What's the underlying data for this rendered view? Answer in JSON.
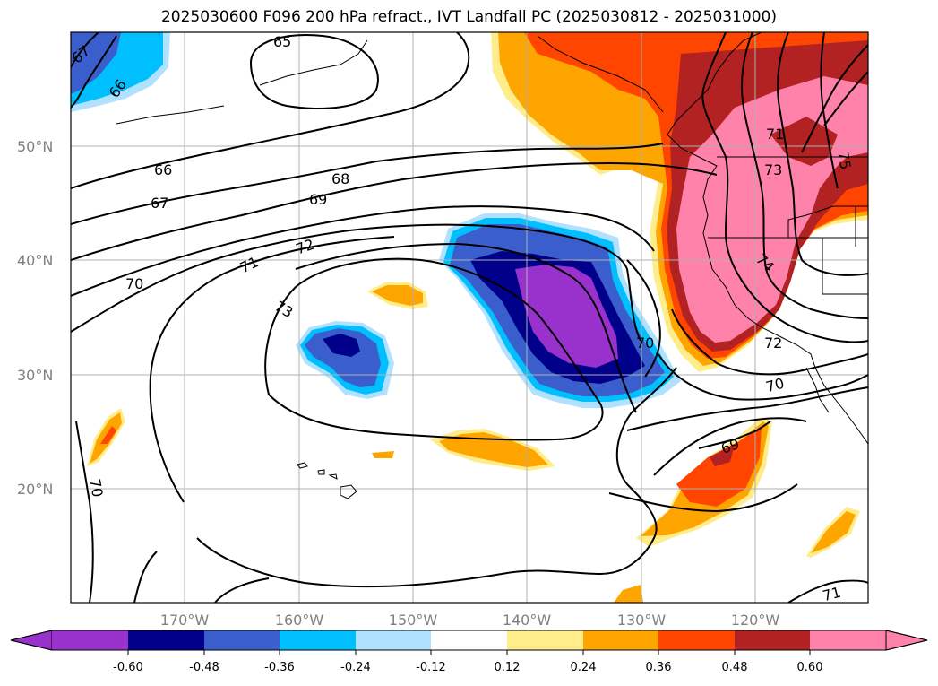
{
  "title": "2025030600 F096 200 hPa refract., IVT Landfall PC (2025030812 - 2025031000)",
  "axes": {
    "lat_labels": [
      "50°N",
      "40°N",
      "30°N",
      "20°N"
    ],
    "lon_labels": [
      "170°W",
      "160°W",
      "150°W",
      "140°W",
      "130°W",
      "120°W"
    ]
  },
  "contour_labels": [
    "67",
    "66",
    "65",
    "66",
    "67",
    "68",
    "69",
    "70",
    "71",
    "72",
    "73",
    "71",
    "73",
    "75",
    "74",
    "72",
    "70",
    "70",
    "69",
    "70",
    "71"
  ],
  "colorbar": {
    "ticks": [
      "-0.60",
      "-0.48",
      "-0.36",
      "-0.24",
      "-0.12",
      "0.12",
      "0.24",
      "0.36",
      "0.48",
      "0.60"
    ],
    "colors": [
      "#9932cc",
      "#00008b",
      "#3a5fcd",
      "#00bfff",
      "#b0e2ff",
      "#ffffff",
      "#ffec8b",
      "#ffa500",
      "#ff4500",
      "#b22222",
      "#ff82ab"
    ]
  },
  "colors": {
    "purple": "#9932cc",
    "navy": "#00008b",
    "royal": "#3a5fcd",
    "sky": "#00bfff",
    "lightblue": "#b0e2ff",
    "yellow": "#ffec8b",
    "orange": "#ffa500",
    "orangered": "#ff4500",
    "firebrick": "#b22222",
    "pink": "#ff82ab"
  }
}
